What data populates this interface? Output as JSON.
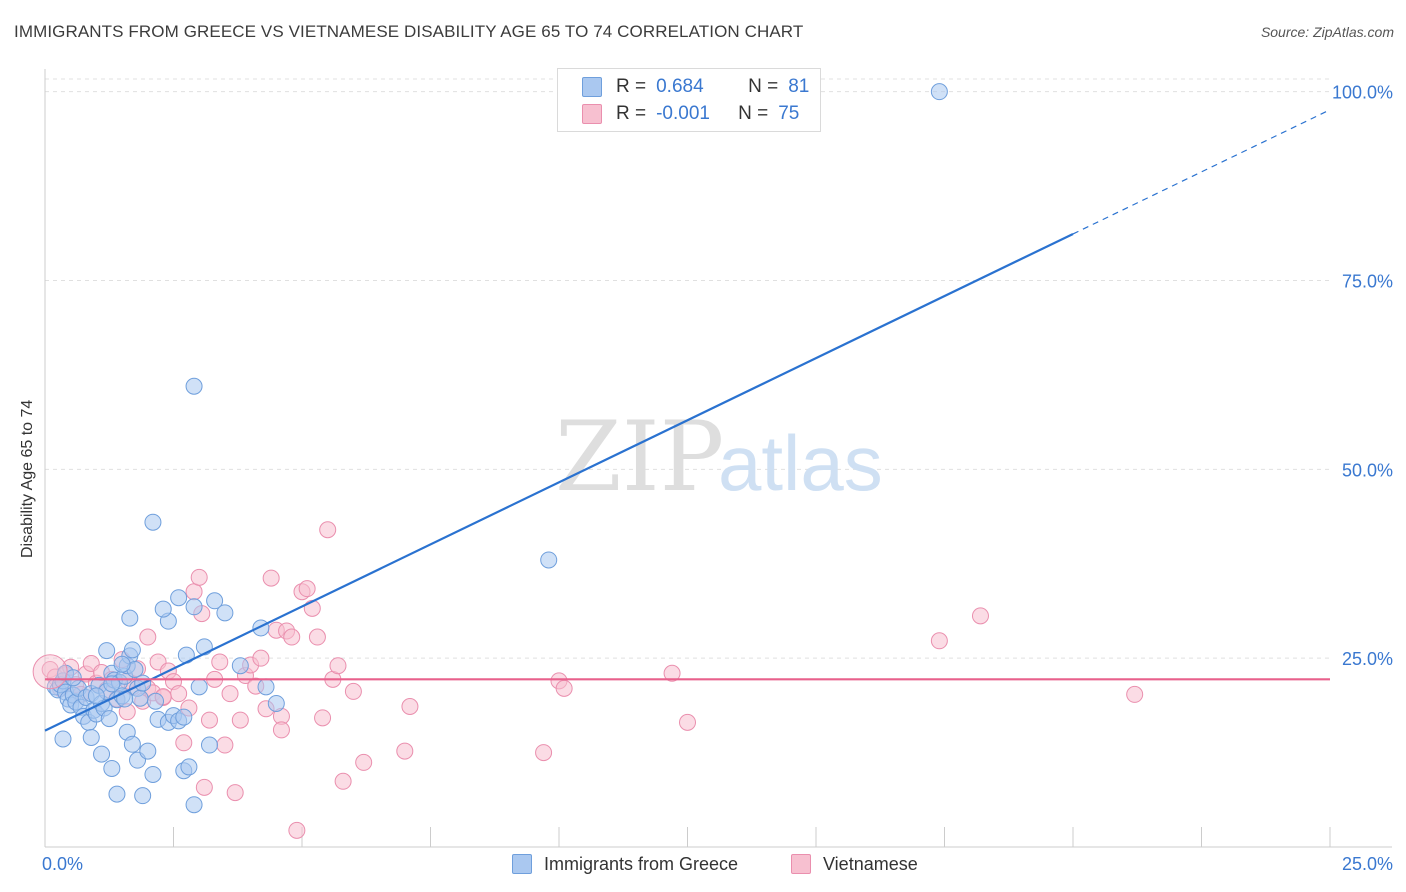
{
  "title": "IMMIGRANTS FROM GREECE VS VIETNAMESE DISABILITY AGE 65 TO 74 CORRELATION CHART",
  "source": "Source: ZipAtlas.com",
  "watermark": {
    "zip": "ZIP",
    "atlas": "atlas"
  },
  "colors": {
    "blue_fill": "#aac8f0",
    "blue_stroke": "#6f9fdc",
    "blue_line": "#2a72d0",
    "pink_fill": "#f7c0d0",
    "pink_stroke": "#ea8fae",
    "pink_line": "#e8608c",
    "axis_label": "#3a78d0",
    "grid": "#e0e0e0"
  },
  "legend_top": {
    "rows": [
      {
        "r_label": "R =",
        "r_value": "0.684",
        "n_label": "N =",
        "n_value": "81",
        "series": "blue"
      },
      {
        "r_label": "R =",
        "r_value": "-0.001",
        "n_label": "N =",
        "n_value": "75",
        "series": "pink"
      }
    ]
  },
  "legend_bottom": {
    "items": [
      {
        "label": "Immigrants from Greece",
        "series": "blue"
      },
      {
        "label": "Vietnamese",
        "series": "pink"
      }
    ]
  },
  "chart_data": {
    "type": "scatter",
    "title": "IMMIGRANTS FROM GREECE VS VIETNAMESE DISABILITY AGE 65 TO 74 CORRELATION CHART",
    "xlabel": "",
    "ylabel": "Disability Age 65 to 74",
    "xlim": [
      0,
      25
    ],
    "ylim": [
      0,
      103
    ],
    "x_tick_labels": {
      "left": "0.0%",
      "right": "25.0%"
    },
    "y_ticks": [
      25,
      50,
      75,
      100
    ],
    "y_tick_labels": [
      "25.0%",
      "50.0%",
      "75.0%",
      "100.0%"
    ],
    "grid": true,
    "series": [
      {
        "name": "Immigrants from Greece",
        "color": "blue",
        "R": 0.684,
        "N": 81,
        "trend": {
          "x0": 0,
          "y0": 15.4,
          "x1": 25,
          "y1": 97.6,
          "solid_until_x": 20
        },
        "points": [
          [
            0.2,
            21.2
          ],
          [
            0.25,
            20.8
          ],
          [
            0.3,
            21.5
          ],
          [
            0.35,
            22.0
          ],
          [
            0.4,
            20.5
          ],
          [
            0.45,
            19.6
          ],
          [
            0.5,
            18.8
          ],
          [
            0.55,
            20.1
          ],
          [
            0.6,
            19.2
          ],
          [
            0.65,
            21.0
          ],
          [
            0.7,
            18.5
          ],
          [
            0.75,
            17.3
          ],
          [
            0.8,
            19.8
          ],
          [
            0.85,
            16.5
          ],
          [
            0.9,
            20.3
          ],
          [
            0.95,
            18.1
          ],
          [
            1.0,
            17.6
          ],
          [
            1.05,
            21.4
          ],
          [
            1.1,
            19.0
          ],
          [
            1.15,
            18.4
          ],
          [
            1.2,
            20.6
          ],
          [
            1.25,
            17.0
          ],
          [
            1.3,
            23.0
          ],
          [
            1.35,
            22.1
          ],
          [
            1.4,
            19.5
          ],
          [
            1.45,
            21.8
          ],
          [
            1.5,
            20.0
          ],
          [
            1.55,
            22.6
          ],
          [
            1.6,
            24.0
          ],
          [
            1.65,
            25.3
          ],
          [
            1.7,
            26.1
          ],
          [
            1.75,
            23.5
          ],
          [
            1.8,
            21.0
          ],
          [
            1.85,
            19.7
          ],
          [
            0.35,
            14.3
          ],
          [
            0.9,
            14.5
          ],
          [
            1.1,
            12.3
          ],
          [
            1.3,
            10.4
          ],
          [
            1.4,
            7.0
          ],
          [
            1.6,
            15.2
          ],
          [
            1.7,
            13.6
          ],
          [
            1.8,
            11.5
          ],
          [
            1.9,
            6.8
          ],
          [
            2.0,
            12.7
          ],
          [
            2.1,
            9.6
          ],
          [
            2.2,
            16.9
          ],
          [
            2.4,
            16.5
          ],
          [
            2.5,
            17.4
          ],
          [
            2.6,
            16.7
          ],
          [
            2.7,
            10.1
          ],
          [
            2.8,
            10.6
          ],
          [
            2.9,
            5.6
          ],
          [
            3.0,
            21.2
          ],
          [
            3.1,
            26.5
          ],
          [
            3.2,
            13.5
          ],
          [
            3.3,
            32.6
          ],
          [
            3.5,
            31.0
          ],
          [
            3.8,
            24.0
          ],
          [
            4.2,
            29.0
          ],
          [
            4.3,
            21.2
          ],
          [
            4.5,
            19.0
          ],
          [
            1.2,
            26.0
          ],
          [
            1.5,
            24.2
          ],
          [
            1.65,
            30.3
          ],
          [
            2.4,
            29.9
          ],
          [
            2.6,
            33.0
          ],
          [
            2.75,
            25.4
          ],
          [
            2.9,
            31.8
          ],
          [
            2.3,
            31.5
          ],
          [
            2.7,
            17.2
          ],
          [
            1.55,
            19.6
          ],
          [
            1.9,
            21.7
          ],
          [
            2.15,
            19.3
          ],
          [
            0.4,
            23.0
          ],
          [
            0.55,
            22.4
          ],
          [
            2.9,
            61.0
          ],
          [
            2.1,
            43.0
          ],
          [
            9.8,
            38.0
          ],
          [
            17.4,
            100.0
          ],
          [
            1.0,
            20.0
          ],
          [
            1.3,
            21.6
          ]
        ]
      },
      {
        "name": "Vietnamese",
        "color": "pink",
        "R": -0.001,
        "N": 75,
        "trend": {
          "x0": 0,
          "y0": 22.2,
          "x1": 25,
          "y1": 22.2
        },
        "points": [
          [
            0.1,
            23.5
          ],
          [
            0.2,
            22.5
          ],
          [
            0.3,
            21.0
          ],
          [
            0.4,
            22.8
          ],
          [
            0.5,
            23.8
          ],
          [
            0.6,
            21.5
          ],
          [
            0.7,
            20.2
          ],
          [
            0.8,
            22.9
          ],
          [
            0.9,
            24.3
          ],
          [
            1.0,
            21.7
          ],
          [
            1.1,
            23.1
          ],
          [
            1.2,
            20.8
          ],
          [
            1.3,
            22.2
          ],
          [
            1.4,
            19.6
          ],
          [
            1.5,
            24.8
          ],
          [
            1.6,
            22.0
          ],
          [
            1.7,
            21.2
          ],
          [
            1.8,
            23.6
          ],
          [
            1.9,
            19.3
          ],
          [
            2.0,
            21.0
          ],
          [
            2.1,
            20.4
          ],
          [
            2.2,
            24.5
          ],
          [
            2.3,
            19.8
          ],
          [
            2.4,
            23.3
          ],
          [
            2.5,
            21.9
          ],
          [
            2.6,
            20.3
          ],
          [
            2.7,
            13.8
          ],
          [
            2.8,
            18.4
          ],
          [
            2.9,
            33.8
          ],
          [
            3.0,
            35.7
          ],
          [
            3.1,
            7.9
          ],
          [
            3.2,
            16.8
          ],
          [
            3.3,
            22.2
          ],
          [
            3.4,
            24.5
          ],
          [
            3.5,
            13.5
          ],
          [
            3.6,
            20.3
          ],
          [
            3.7,
            7.2
          ],
          [
            3.8,
            16.8
          ],
          [
            3.9,
            22.7
          ],
          [
            4.0,
            24.1
          ],
          [
            4.1,
            21.3
          ],
          [
            4.2,
            25.0
          ],
          [
            4.3,
            18.3
          ],
          [
            4.4,
            35.6
          ],
          [
            4.5,
            28.7
          ],
          [
            4.6,
            17.3
          ],
          [
            4.7,
            28.6
          ],
          [
            4.8,
            27.8
          ],
          [
            4.9,
            2.2
          ],
          [
            5.0,
            33.8
          ],
          [
            5.1,
            34.2
          ],
          [
            5.2,
            31.6
          ],
          [
            5.3,
            27.8
          ],
          [
            5.4,
            17.1
          ],
          [
            5.5,
            42.0
          ],
          [
            5.6,
            22.2
          ],
          [
            5.7,
            24.0
          ],
          [
            5.8,
            8.7
          ],
          [
            6.0,
            20.6
          ],
          [
            6.2,
            11.2
          ],
          [
            7.0,
            12.7
          ],
          [
            7.1,
            18.6
          ],
          [
            9.7,
            12.5
          ],
          [
            10.0,
            22.0
          ],
          [
            10.1,
            21.0
          ],
          [
            12.2,
            23.0
          ],
          [
            12.5,
            16.5
          ],
          [
            17.4,
            27.3
          ],
          [
            18.2,
            30.6
          ],
          [
            21.2,
            20.2
          ],
          [
            2.0,
            27.8
          ],
          [
            2.3,
            19.9
          ],
          [
            1.6,
            17.9
          ],
          [
            3.05,
            30.9
          ],
          [
            4.6,
            15.5
          ]
        ]
      }
    ]
  }
}
